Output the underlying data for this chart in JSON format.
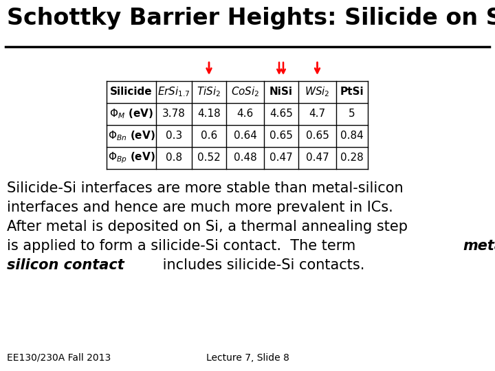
{
  "title": "Schottky Barrier Heights: Silicide on Si",
  "title_fontsize": 24,
  "bg_color": "#ffffff",
  "text_color": "#000000",
  "table_col_headers": [
    "Silicide",
    "ErSi",
    "TiSi",
    "CoSi",
    "NiSi",
    "WSi",
    "PtSi"
  ],
  "table_col_subs": [
    "",
    "1.7",
    "2",
    "2",
    "",
    "2",
    ""
  ],
  "table_rows_labels": [
    "Phi_M",
    "Phi_Bn",
    "Phi_Bp"
  ],
  "table_rows_data": [
    [
      "3.78",
      "4.18",
      "4.6",
      "4.65",
      "4.7",
      "5"
    ],
    [
      "0.3",
      "0.6",
      "0.64",
      "0.65",
      "0.65",
      "0.84"
    ],
    [
      "0.8",
      "0.52",
      "0.48",
      "0.47",
      "0.47",
      "0.28"
    ]
  ],
  "arrow_cols_single": [
    2,
    5
  ],
  "arrow_cols_double": [
    4
  ],
  "body_lines": [
    "Silicide-Si interfaces are more stable than metal-silicon",
    "interfaces and hence are much more prevalent in ICs.",
    "After metal is deposited on Si, a thermal annealing step",
    "is applied to form a silicide-Si contact.  The term "
  ],
  "body_bold_italic_end_line4": "metal-",
  "body_line5_bold": "silicon contact",
  "body_line5_normal": " includes silicide-Si contacts.",
  "footer_left": "EE130/230A Fall 2013",
  "footer_right": "Lecture 7, Slide 8",
  "body_fontsize": 15,
  "table_fontsize": 11,
  "footer_fontsize": 10
}
